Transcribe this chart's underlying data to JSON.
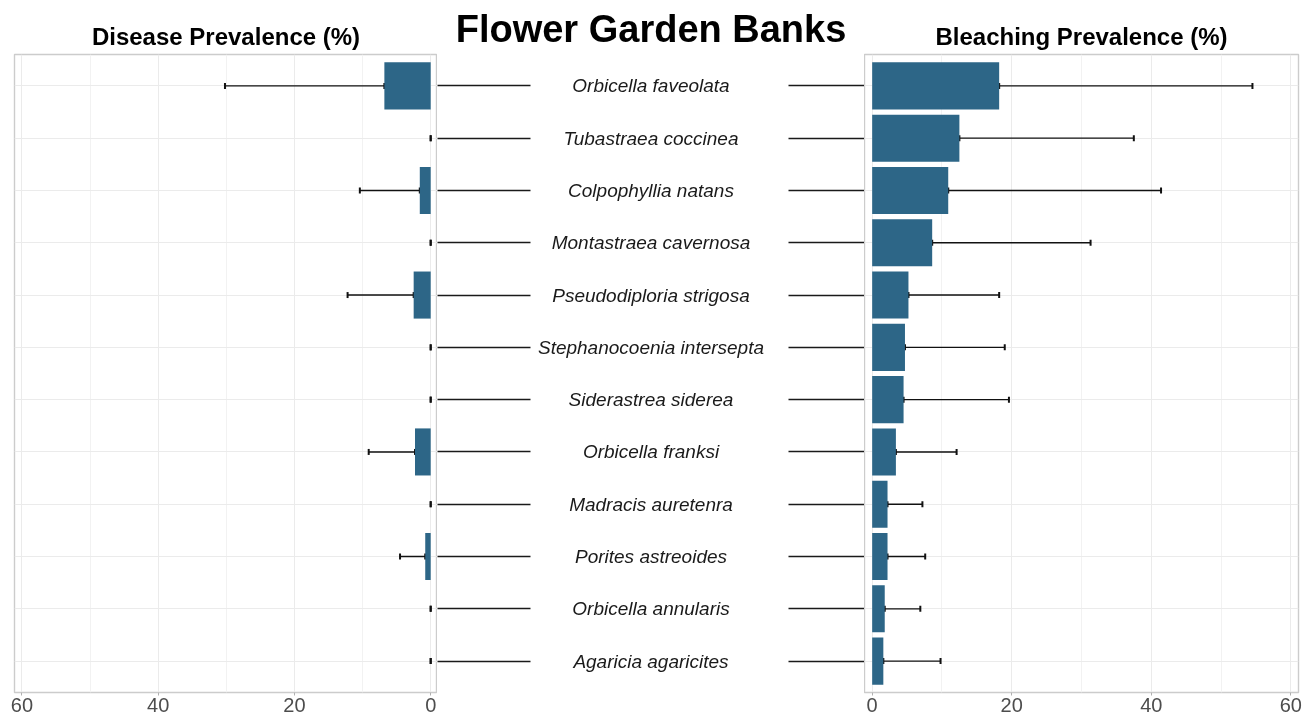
{
  "chart_data": [
    {
      "type": "bar",
      "orientation": "horizontal",
      "title": "Disease Prevalence (%)",
      "categories": [
        "Orbicella faveolata",
        "Tubastraea coccinea",
        "Colpophyllia natans",
        "Montastraea cavernosa",
        "Pseudodiploria strigosa",
        "Stephanocoenia intersepta",
        "Siderastrea siderea",
        "Orbicella franksi",
        "Madracis auretenra",
        "Porites astreoides",
        "Orbicella annularis",
        "Agaricia agaricites"
      ],
      "values": [
        6.8,
        0,
        1.6,
        0,
        2.5,
        0,
        0,
        2.3,
        0,
        0.8,
        0,
        0
      ],
      "errors": [
        [
          6.8,
          30.2
        ],
        [
          0,
          0
        ],
        [
          1.6,
          10.4
        ],
        [
          0,
          0
        ],
        [
          2.5,
          12.2
        ],
        [
          0,
          0
        ],
        [
          0,
          0
        ],
        [
          2.3,
          9.1
        ],
        [
          0,
          0
        ],
        [
          0.8,
          4.5
        ],
        [
          0,
          0
        ],
        [
          0,
          0
        ]
      ],
      "color": "#2d6687",
      "xlim": [
        61.1,
        -1.0
      ],
      "xticks": [
        60,
        40,
        20,
        0
      ],
      "grid": true
    },
    {
      "type": "other",
      "title": "Flower Garden Banks"
    },
    {
      "type": "bar",
      "orientation": "horizontal",
      "title": "Bleaching Prevalence (%)",
      "categories": [
        null,
        null,
        null,
        null,
        null,
        null,
        null,
        null,
        null,
        null,
        null,
        null
      ],
      "values": [
        18.2,
        12.5,
        10.9,
        8.6,
        5.2,
        4.7,
        4.5,
        3.4,
        2.2,
        2.2,
        1.8,
        1.6
      ],
      "errors": [
        [
          18.2,
          54.5
        ],
        [
          12.5,
          37.5
        ],
        [
          10.9,
          41.4
        ],
        [
          8.6,
          31.3
        ],
        [
          5.2,
          18.2
        ],
        [
          4.7,
          19.0
        ],
        [
          4.5,
          19.6
        ],
        [
          3.4,
          12.1
        ],
        [
          2.2,
          7.2
        ],
        [
          2.2,
          7.6
        ],
        [
          1.8,
          6.9
        ],
        [
          1.6,
          9.8
        ]
      ],
      "color": "#2d6687",
      "xlim": [
        -1.1,
        61.1
      ],
      "xticks": [
        0,
        20,
        40,
        60
      ],
      "grid": true,
      "tick_labels": "x"
    }
  ]
}
